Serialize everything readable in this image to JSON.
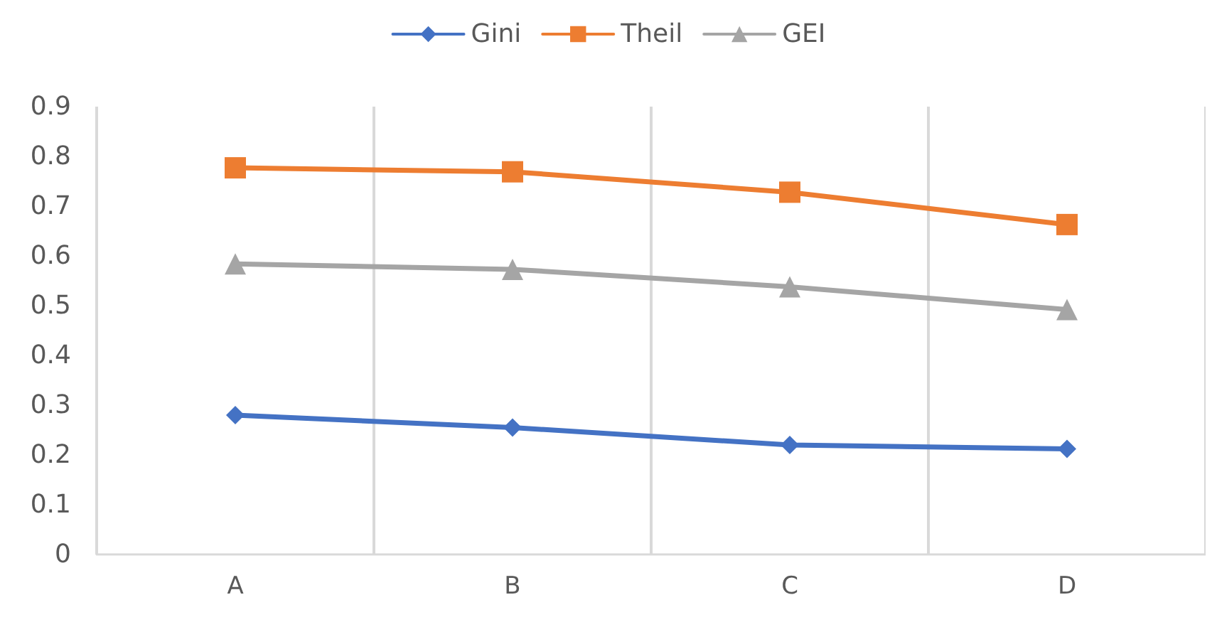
{
  "chart_data": {
    "type": "line",
    "categories": [
      "A",
      "B",
      "C",
      "D"
    ],
    "series": [
      {
        "name": "Gini",
        "color": "#4472c4",
        "marker": "diamond",
        "values": [
          0.28,
          0.255,
          0.22,
          0.212
        ]
      },
      {
        "name": "Theil",
        "color": "#ed7d31",
        "marker": "square",
        "values": [
          0.777,
          0.769,
          0.728,
          0.663
        ]
      },
      {
        "name": "GEI",
        "color": "#a5a5a5",
        "marker": "triangle",
        "values": [
          0.584,
          0.573,
          0.538,
          0.492
        ]
      }
    ],
    "ylim": [
      0,
      0.9
    ],
    "yticks": [
      0,
      0.1,
      0.2,
      0.3,
      0.4,
      0.5,
      0.6,
      0.7,
      0.8,
      0.9
    ],
    "grid": "x",
    "legend": "top"
  }
}
